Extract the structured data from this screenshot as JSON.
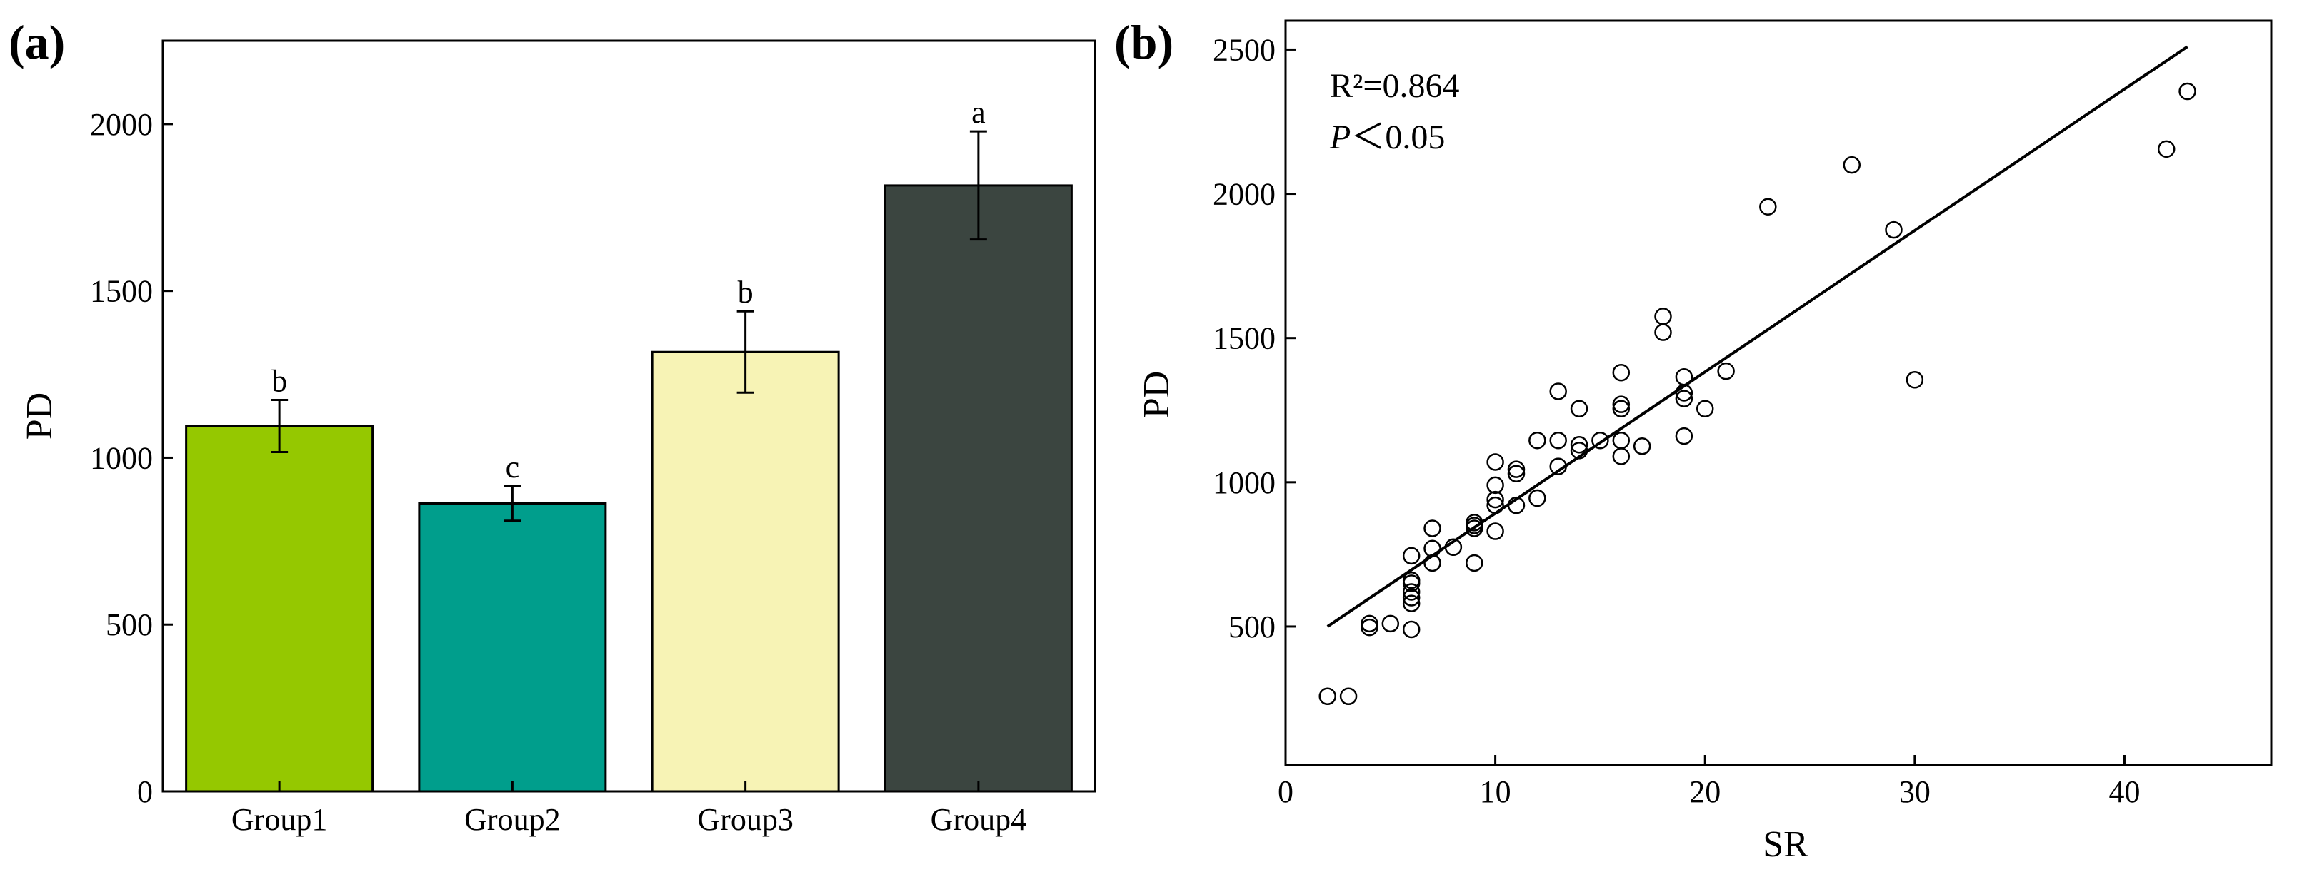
{
  "chart_data": [
    {
      "panel": "(a)",
      "type": "bar",
      "title": "",
      "xlabel": "",
      "ylabel": "PD",
      "ylim": [
        0,
        2250
      ],
      "yticks": [
        0,
        500,
        1000,
        1500,
        2000
      ],
      "categories": [
        "Group1",
        "Group2",
        "Group3",
        "Group4"
      ],
      "values": [
        1095,
        863,
        1317,
        1816
      ],
      "errors": [
        78,
        52,
        122,
        162
      ],
      "letters": [
        "b",
        "c",
        "b",
        "a"
      ],
      "colors": [
        "#95c800",
        "#009e8c",
        "#f7f3b5",
        "#3b4540"
      ],
      "edge_color": "#000000"
    },
    {
      "panel": "(b)",
      "type": "scatter",
      "title": "",
      "xlabel": "SR",
      "ylabel": "PD",
      "xlim": [
        0,
        47
      ],
      "ylim": [
        20,
        2600
      ],
      "xticks": [
        0,
        10,
        20,
        30,
        40
      ],
      "yticks": [
        500,
        1000,
        1500,
        2000,
        2500
      ],
      "annotation_r2": "R²=0.864",
      "annotation_p_symbol": "P",
      "annotation_p_rest": "＜0.05",
      "fit_line": {
        "x": [
          2,
          43
        ],
        "y": [
          500,
          2510
        ]
      },
      "points": [
        [
          2,
          258
        ],
        [
          3,
          258
        ],
        [
          4,
          497
        ],
        [
          4,
          510
        ],
        [
          5,
          510
        ],
        [
          6,
          490
        ],
        [
          6,
          580
        ],
        [
          6,
          600
        ],
        [
          6,
          620
        ],
        [
          6,
          650
        ],
        [
          6,
          660
        ],
        [
          6,
          745
        ],
        [
          7,
          720
        ],
        [
          7,
          770
        ],
        [
          7,
          840
        ],
        [
          8,
          775
        ],
        [
          9,
          720
        ],
        [
          9,
          840
        ],
        [
          9,
          850
        ],
        [
          9,
          860
        ],
        [
          10,
          830
        ],
        [
          10,
          920
        ],
        [
          10,
          940
        ],
        [
          10,
          990
        ],
        [
          10,
          1070
        ],
        [
          11,
          920
        ],
        [
          11,
          1030
        ],
        [
          11,
          1045
        ],
        [
          12,
          945
        ],
        [
          12,
          1145
        ],
        [
          13,
          1055
        ],
        [
          13,
          1145
        ],
        [
          13,
          1315
        ],
        [
          14,
          1110
        ],
        [
          14,
          1130
        ],
        [
          14,
          1255
        ],
        [
          15,
          1145
        ],
        [
          16,
          1090
        ],
        [
          16,
          1145
        ],
        [
          16,
          1255
        ],
        [
          16,
          1270
        ],
        [
          16,
          1380
        ],
        [
          17,
          1125
        ],
        [
          18,
          1520
        ],
        [
          18,
          1575
        ],
        [
          19,
          1160
        ],
        [
          19,
          1290
        ],
        [
          19,
          1310
        ],
        [
          19,
          1365
        ],
        [
          20,
          1255
        ],
        [
          21,
          1385
        ],
        [
          23,
          1955
        ],
        [
          27,
          2100
        ],
        [
          29,
          1875
        ],
        [
          30,
          1355
        ],
        [
          42,
          2155
        ],
        [
          43,
          2355
        ]
      ]
    }
  ]
}
